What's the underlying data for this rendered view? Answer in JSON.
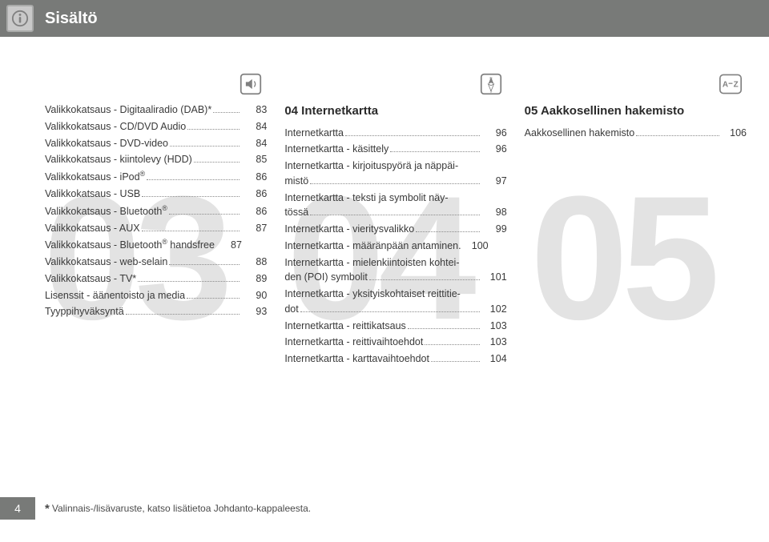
{
  "header": {
    "title": "Sisältö"
  },
  "columns": {
    "col1": {
      "items": [
        {
          "label": "Valikkokatsaus - Digitaaliradio (DAB)*",
          "dots": true,
          "page": "83"
        },
        {
          "label": "Valikkokatsaus - CD/DVD Audio",
          "dots": true,
          "page": "84"
        },
        {
          "label": "Valikkokatsaus - DVD-video",
          "dots": true,
          "page": "84"
        },
        {
          "label": "Valikkokatsaus - kiintolevy (HDD)",
          "dots": true,
          "page": "85"
        },
        {
          "label": "Valikkokatsaus - iPod®",
          "dots": true,
          "page": "86"
        },
        {
          "label": "Valikkokatsaus - USB",
          "dots": true,
          "page": "86"
        },
        {
          "label": "Valikkokatsaus - Bluetooth®",
          "dots": true,
          "page": "86"
        },
        {
          "label": "Valikkokatsaus - AUX",
          "dots": true,
          "page": "87"
        },
        {
          "label": "Valikkokatsaus - Bluetooth® handsfree",
          "dots": false,
          "page": "87"
        },
        {
          "label": "Valikkokatsaus - web-selain",
          "dots": true,
          "page": "88"
        },
        {
          "label": "Valikkokatsaus - TV*",
          "dots": true,
          "page": "89"
        },
        {
          "label": "Lisenssit - äänentoisto ja media",
          "dots": true,
          "page": "90"
        },
        {
          "label": "Tyyppihyväksyntä",
          "dots": true,
          "page": "93"
        }
      ],
      "bignum": "03"
    },
    "col2": {
      "title": "04 Internetkartta",
      "items": [
        {
          "label": "Internetkartta",
          "dots": true,
          "page": "96"
        },
        {
          "label": "Internetkartta - käsittely",
          "dots": true,
          "page": "96"
        },
        {
          "wrap": true,
          "line1": "Internetkartta - kirjoituspyörä ja näppäi-",
          "line2": "mistö",
          "dots": true,
          "page": "97"
        },
        {
          "wrap": true,
          "line1": "Internetkartta - teksti ja symbolit näy-",
          "line2": "tössä",
          "dots": true,
          "page": "98"
        },
        {
          "label": "Internetkartta - vieritysvalikko",
          "dots": true,
          "page": "99"
        },
        {
          "label": "Internetkartta - määränpään antaminen.",
          "dots": false,
          "page": "100"
        },
        {
          "wrap": true,
          "line1": "Internetkartta - mielenkiintoisten kohtei-",
          "line2": "den (POI) symbolit",
          "dots": true,
          "page": "101"
        },
        {
          "wrap": true,
          "line1": "Internetkartta - yksityiskohtaiset reittitie-",
          "line2": "dot",
          "dots": true,
          "page": "102"
        },
        {
          "label": "Internetkartta - reittikatsaus",
          "dots": true,
          "page": "103"
        },
        {
          "label": "Internetkartta - reittivaihtoehdot",
          "dots": true,
          "page": "103"
        },
        {
          "label": "Internetkartta - karttavaihtoehdot",
          "dots": true,
          "page": "104"
        }
      ],
      "bignum": "04"
    },
    "col3": {
      "title": "05 Aakkosellinen hakemisto",
      "items": [
        {
          "label": "Aakkosellinen hakemisto",
          "dots": true,
          "page": "106"
        }
      ],
      "bignum": "05"
    }
  },
  "footer": {
    "page": "4",
    "note": "Valinnais-/lisävaruste, katso lisätietoa Johdanto-kappaleesta."
  },
  "style": {
    "bignum_positions": [
      "54px",
      "358px",
      "662px"
    ]
  }
}
